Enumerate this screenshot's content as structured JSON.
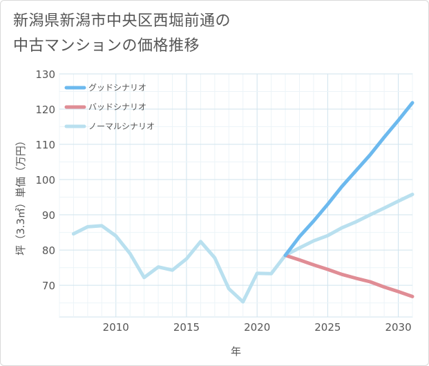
{
  "title_lines": [
    "新潟県新潟市中央区西堀前通の",
    "中古マンションの価格推移"
  ],
  "chart_data": {
    "type": "line",
    "xlabel": "年",
    "ylabel": "坪（3.3㎡）単価（万円）",
    "xlim": [
      2006,
      2031
    ],
    "ylim": [
      61,
      130
    ],
    "xticks": [
      2010,
      2015,
      2020,
      2025,
      2030
    ],
    "yticks": [
      70,
      80,
      90,
      100,
      110,
      120,
      130
    ],
    "grid": true,
    "legend_position": "top-left",
    "series": [
      {
        "name": "グッドシナリオ",
        "color": "#6cb9ee",
        "x": [
          2022,
          2023,
          2024,
          2025,
          2026,
          2027,
          2028,
          2029,
          2030,
          2031
        ],
        "y": [
          78.5,
          83.8,
          88.2,
          93.0,
          98.0,
          102.5,
          107.0,
          112.0,
          116.8,
          121.8
        ]
      },
      {
        "name": "バッドシナリオ",
        "color": "#e08d95",
        "x": [
          2022,
          2023,
          2024,
          2025,
          2026,
          2027,
          2028,
          2029,
          2030,
          2031
        ],
        "y": [
          78.5,
          77.2,
          75.8,
          74.5,
          73.1,
          72.0,
          71.0,
          69.5,
          68.2,
          66.8
        ]
      },
      {
        "name": "ノーマルシナリオ",
        "color": "#b9e0ef",
        "x": [
          2007,
          2008,
          2009,
          2010,
          2011,
          2012,
          2013,
          2014,
          2015,
          2016,
          2017,
          2018,
          2019,
          2020,
          2021,
          2022,
          2023,
          2024,
          2025,
          2026,
          2027,
          2028,
          2029,
          2030,
          2031
        ],
        "y": [
          84.6,
          86.6,
          86.9,
          84.0,
          79.0,
          72.2,
          75.2,
          74.3,
          77.5,
          82.4,
          77.8,
          69.0,
          65.3,
          73.4,
          73.3,
          78.5,
          80.6,
          82.6,
          84.1,
          86.3,
          88.0,
          90.0,
          91.9,
          93.9,
          95.8
        ]
      }
    ]
  }
}
